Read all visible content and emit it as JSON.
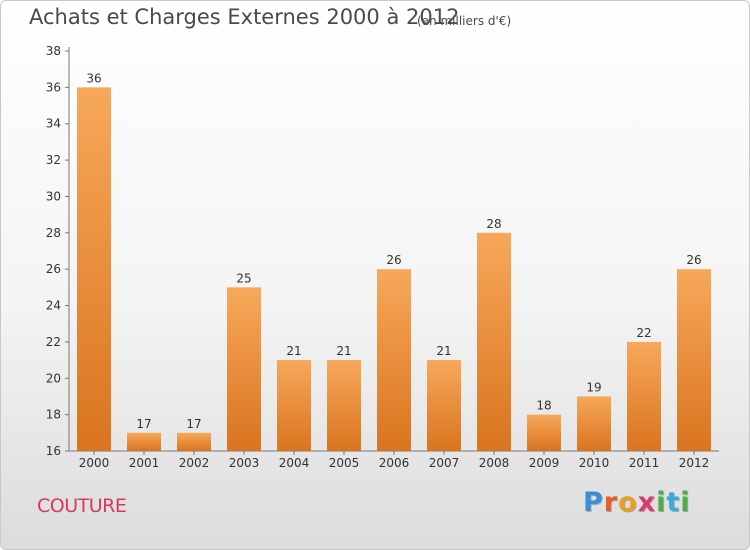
{
  "header": {
    "title": "Achats et Charges Externes 2000 à 2012",
    "subtitle": "(en milliers d'€)"
  },
  "footer": {
    "commune": "COUTURE",
    "logo_letters": [
      "P",
      "r",
      "o",
      "x",
      "i",
      "t",
      "i"
    ]
  },
  "colors": {
    "bar_light": "#f7a85a",
    "bar_dark": "#d9741f",
    "title": "#4a4a4a",
    "commune": "#d8395a"
  },
  "chart_data": {
    "type": "bar",
    "title": "Achats et Charges Externes 2000 à 2012",
    "categories": [
      "2000",
      "2001",
      "2002",
      "2003",
      "2004",
      "2005",
      "2006",
      "2007",
      "2008",
      "2009",
      "2010",
      "2011",
      "2012"
    ],
    "values": [
      36,
      17,
      17,
      25,
      21,
      21,
      26,
      21,
      28,
      18,
      19,
      22,
      26
    ],
    "ylim": [
      16,
      38
    ],
    "yticks": [
      16,
      18,
      20,
      22,
      24,
      26,
      28,
      30,
      32,
      34,
      36,
      38
    ],
    "grid": false,
    "data_labels": true,
    "xlabel": "",
    "ylabel": ""
  }
}
